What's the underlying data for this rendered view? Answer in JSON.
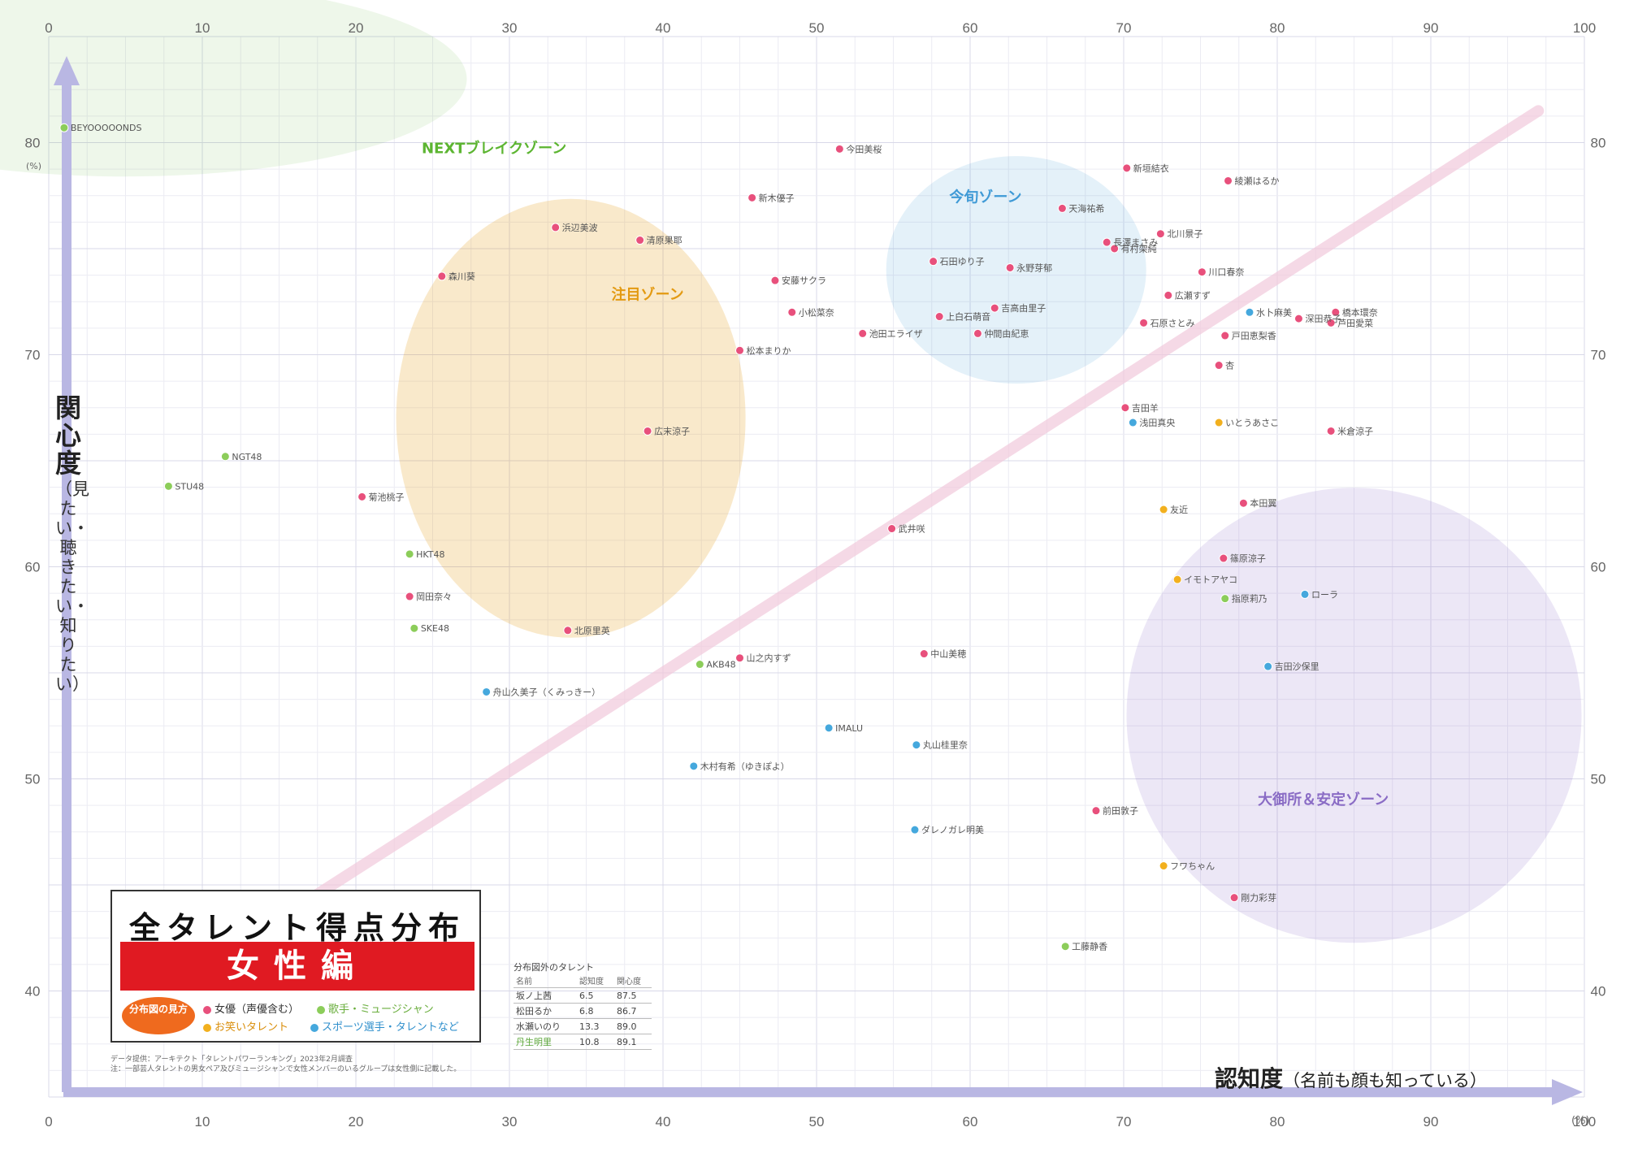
{
  "chart_data": {
    "type": "scatter",
    "title": "全タレント得点分布図",
    "subtitle": "女性編",
    "xlabel": "認知度",
    "xlabel_note": "（名前も顔も知っている）",
    "ylabel": "関心度",
    "ylabel_note": "（見たい・聴きたい・知りたい）",
    "x_unit": "(%)",
    "y_unit": "(%)",
    "xlim": [
      0,
      100
    ],
    "ylim": [
      35,
      85
    ],
    "x_ticks_top": [
      "0",
      "10",
      "20",
      "30",
      "40",
      "50",
      "60",
      "70",
      "80",
      "90",
      "100"
    ],
    "x_ticks_bottom": [
      "0",
      "10",
      "20",
      "30",
      "40",
      "50",
      "60",
      "70",
      "80",
      "90",
      "100"
    ],
    "y_ticks": [
      "40",
      "50",
      "60",
      "70",
      "80"
    ],
    "grid": true,
    "zones": [
      {
        "name": "NEXTブレイクゾーン",
        "color": "#5cb531"
      },
      {
        "name": "注目ゾーン",
        "color": "#e39a12"
      },
      {
        "name": "今旬ゾーン",
        "color": "#3f9ad6"
      },
      {
        "name": "大御所＆安定ゾーン",
        "color": "#8a6cc5"
      }
    ],
    "categories_legend_title": "分布図の見方",
    "categories": [
      {
        "key": "actress",
        "label": "女優（声優含む）",
        "color": "#e8507c"
      },
      {
        "key": "musician",
        "label": "歌手・ミュージシャン",
        "color": "#8ccd5a"
      },
      {
        "key": "comedian",
        "label": "お笑いタレント",
        "color": "#f2b01e"
      },
      {
        "key": "sports",
        "label": "スポーツ選手・タレントなど",
        "color": "#45a8dd"
      }
    ],
    "points": [
      {
        "name": "今田美桜",
        "x": 51.5,
        "y": 79.7,
        "cat": "actress"
      },
      {
        "name": "新垣結衣",
        "x": 70.2,
        "y": 78.8,
        "cat": "actress"
      },
      {
        "name": "綾瀬はるか",
        "x": 76.8,
        "y": 78.2,
        "cat": "actress"
      },
      {
        "name": "有村架純",
        "x": 69.4,
        "y": 75.0,
        "cat": "actress"
      },
      {
        "name": "北川景子",
        "x": 72.4,
        "y": 75.7,
        "cat": "actress"
      },
      {
        "name": "長澤まさみ",
        "x": 68.9,
        "y": 75.3,
        "cat": "actress"
      },
      {
        "name": "天海祐希",
        "x": 66.0,
        "y": 76.9,
        "cat": "actress"
      },
      {
        "name": "川口春奈",
        "x": 75.1,
        "y": 73.9,
        "cat": "actress"
      },
      {
        "name": "広瀬すず",
        "x": 72.9,
        "y": 72.8,
        "cat": "actress"
      },
      {
        "name": "石原さとみ",
        "x": 71.3,
        "y": 71.5,
        "cat": "actress"
      },
      {
        "name": "橋本環奈",
        "x": 83.8,
        "y": 72.0,
        "cat": "actress"
      },
      {
        "name": "芦田愛菜",
        "x": 83.5,
        "y": 71.5,
        "cat": "actress"
      },
      {
        "name": "深田恭子",
        "x": 81.4,
        "y": 71.7,
        "cat": "actress"
      },
      {
        "name": "水卜麻美",
        "x": 78.2,
        "y": 72.0,
        "cat": "sports"
      },
      {
        "name": "戸田恵梨香",
        "x": 76.6,
        "y": 70.9,
        "cat": "actress"
      },
      {
        "name": "杏",
        "x": 76.2,
        "y": 69.5,
        "cat": "actress"
      },
      {
        "name": "米倉涼子",
        "x": 83.5,
        "y": 66.4,
        "cat": "actress"
      },
      {
        "name": "吉田羊",
        "x": 70.1,
        "y": 67.5,
        "cat": "actress"
      },
      {
        "name": "浅田真央",
        "x": 70.6,
        "y": 66.8,
        "cat": "sports"
      },
      {
        "name": "いとうあさこ",
        "x": 76.2,
        "y": 66.8,
        "cat": "comedian"
      },
      {
        "name": "友近",
        "x": 72.6,
        "y": 62.7,
        "cat": "comedian"
      },
      {
        "name": "本田翼",
        "x": 77.8,
        "y": 63.0,
        "cat": "actress"
      },
      {
        "name": "篠原涼子",
        "x": 76.5,
        "y": 60.4,
        "cat": "actress"
      },
      {
        "name": "イモトアヤコ",
        "x": 73.5,
        "y": 59.4,
        "cat": "comedian"
      },
      {
        "name": "指原莉乃",
        "x": 76.6,
        "y": 58.5,
        "cat": "musician"
      },
      {
        "name": "ローラ",
        "x": 81.8,
        "y": 58.7,
        "cat": "sports"
      },
      {
        "name": "吉田沙保里",
        "x": 79.4,
        "y": 55.3,
        "cat": "sports"
      },
      {
        "name": "前田敦子",
        "x": 68.2,
        "y": 48.5,
        "cat": "actress"
      },
      {
        "name": "剛力彩芽",
        "x": 77.2,
        "y": 44.4,
        "cat": "actress"
      },
      {
        "name": "フワちゃん",
        "x": 72.6,
        "y": 45.9,
        "cat": "comedian"
      },
      {
        "name": "工藤静香",
        "x": 66.2,
        "y": 42.1,
        "cat": "musician"
      },
      {
        "name": "石田ゆり子",
        "x": 57.6,
        "y": 74.4,
        "cat": "actress"
      },
      {
        "name": "永野芽郁",
        "x": 62.6,
        "y": 74.1,
        "cat": "actress"
      },
      {
        "name": "吉高由里子",
        "x": 61.6,
        "y": 72.2,
        "cat": "actress"
      },
      {
        "name": "新木優子",
        "x": 45.8,
        "y": 77.4,
        "cat": "actress"
      },
      {
        "name": "松本まりか",
        "x": 45.0,
        "y": 70.2,
        "cat": "actress"
      },
      {
        "name": "仲間由紀恵",
        "x": 60.5,
        "y": 71.0,
        "cat": "actress"
      },
      {
        "name": "池田エライザ",
        "x": 53.0,
        "y": 71.0,
        "cat": "actress"
      },
      {
        "name": "小松菜奈",
        "x": 48.4,
        "y": 72.0,
        "cat": "actress"
      },
      {
        "name": "清原果耶",
        "x": 38.5,
        "y": 75.4,
        "cat": "actress"
      },
      {
        "name": "浜辺美波",
        "x": 33.0,
        "y": 76.0,
        "cat": "actress"
      },
      {
        "name": "森川葵",
        "x": 25.6,
        "y": 73.7,
        "cat": "actress"
      },
      {
        "name": "広末涼子",
        "x": 39.0,
        "y": 66.4,
        "cat": "actress"
      },
      {
        "name": "上白石萌音",
        "x": 58.0,
        "y": 71.8,
        "cat": "actress"
      },
      {
        "name": "安藤サクラ",
        "x": 47.3,
        "y": 73.5,
        "cat": "actress"
      },
      {
        "name": "武井咲",
        "x": 54.9,
        "y": 61.8,
        "cat": "actress"
      },
      {
        "name": "中山美穂",
        "x": 57.0,
        "y": 55.9,
        "cat": "actress"
      },
      {
        "name": "山之内すず",
        "x": 45.0,
        "y": 55.7,
        "cat": "actress"
      },
      {
        "name": "北原里英",
        "x": 33.8,
        "y": 57.0,
        "cat": "actress"
      },
      {
        "name": "岡田奈々",
        "x": 23.5,
        "y": 58.6,
        "cat": "actress"
      },
      {
        "name": "菊池桃子",
        "x": 20.4,
        "y": 63.3,
        "cat": "actress"
      },
      {
        "name": "BEYOOOOONDS",
        "x": 1.0,
        "y": 80.7,
        "cat": "musician"
      },
      {
        "name": "AKB48",
        "x": 42.4,
        "y": 55.4,
        "cat": "musician"
      },
      {
        "name": "NGT48",
        "x": 11.5,
        "y": 65.2,
        "cat": "musician"
      },
      {
        "name": "STU48",
        "x": 7.8,
        "y": 63.8,
        "cat": "musician"
      },
      {
        "name": "SKE48",
        "x": 23.8,
        "y": 57.1,
        "cat": "musician"
      },
      {
        "name": "HKT48",
        "x": 23.5,
        "y": 60.6,
        "cat": "musician"
      },
      {
        "name": "IMALU",
        "x": 50.8,
        "y": 52.4,
        "cat": "sports"
      },
      {
        "name": "丸山桂里奈",
        "x": 56.5,
        "y": 51.6,
        "cat": "sports"
      },
      {
        "name": "ダレノガレ明美",
        "x": 56.4,
        "y": 47.6,
        "cat": "sports"
      },
      {
        "name": "木村有希（ゆきぽよ）",
        "x": 42.0,
        "y": 50.6,
        "cat": "sports"
      },
      {
        "name": "舟山久美子（くみっきー）",
        "x": 28.5,
        "y": 54.1,
        "cat": "sports"
      }
    ],
    "outside_table": {
      "title": "分布図外のタレント",
      "headers": [
        "名前",
        "認知度",
        "関心度"
      ],
      "rows": [
        [
          "坂ノ上茜",
          "6.5",
          "87.5"
        ],
        [
          "松田るか",
          "6.8",
          "86.7"
        ],
        [
          "水瀬いのり",
          "13.3",
          "89.0"
        ],
        [
          "丹生明里",
          "10.8",
          "89.1"
        ]
      ]
    },
    "source_note": "データ提供：アーキテクト「タレントパワーランキング」2023年2月調査\n注：一部芸人タレントの男女ペア及びミュージシャンで女性メンバーのいるグループは女性側に記載した。"
  }
}
